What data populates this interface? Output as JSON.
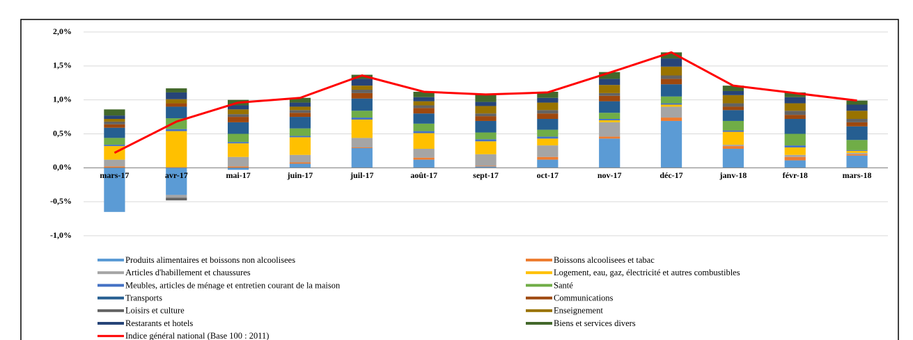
{
  "chart_data": {
    "type": "bar",
    "stacked": true,
    "grid": true,
    "legend": "bottom",
    "categories": [
      "mars-17",
      "avr-17",
      "mai-17",
      "juin-17",
      "juil-17",
      "août-17",
      "sept-17",
      "oct-17",
      "nov-17",
      "déc-17",
      "janv-18",
      "févr-18",
      "mars-18"
    ],
    "ylim": [
      -1.0,
      2.0
    ],
    "yticks": [
      {
        "value": -1.0,
        "label": "-1,0%"
      },
      {
        "value": -0.5,
        "label": "-0,5%"
      },
      {
        "value": 0,
        "label": "0,0%"
      },
      {
        "value": 0.5,
        "label": "0,5%"
      },
      {
        "value": 1.0,
        "label": "1,0%"
      },
      {
        "value": 1.5,
        "label": "1,5%"
      },
      {
        "value": 2.0,
        "label": "2,0%"
      }
    ],
    "series": [
      {
        "name": "Produits alimentaires et boissons non alcoolisees",
        "color": "#5b9bd5",
        "values": [
          -0.65,
          -0.4,
          -0.03,
          0.06,
          0.29,
          0.12,
          0.02,
          0.12,
          0.43,
          0.69,
          0.28,
          0.11,
          0.18
        ]
      },
      {
        "name": "Boissons alcoolisees et tabac",
        "color": "#ed7d31",
        "values": [
          0.02,
          0.01,
          0.02,
          0.02,
          0.01,
          0.03,
          0.01,
          0.04,
          0.03,
          0.05,
          0.04,
          0.05,
          0.02
        ]
      },
      {
        "name": "Articles d'habillement et chaussures",
        "color": "#a5a5a5",
        "values": [
          0.1,
          -0.04,
          0.14,
          0.11,
          0.14,
          0.13,
          0.17,
          0.17,
          0.21,
          0.16,
          0.02,
          0.03,
          0.02
        ]
      },
      {
        "name": "Logement, eau, gaz, électricité et autres combustibles",
        "color": "#ffc000",
        "values": [
          0.2,
          0.53,
          0.2,
          0.26,
          0.27,
          0.23,
          0.19,
          0.1,
          0.03,
          0.03,
          0.19,
          0.11,
          0.03
        ]
      },
      {
        "name": "Meubles, articles de ménage et entretien courant de la maison",
        "color": "#4472c4",
        "values": [
          0.02,
          0.03,
          0.02,
          0.02,
          0.03,
          0.03,
          0.03,
          0.03,
          0.02,
          0.02,
          0.02,
          0.03,
          0.01
        ]
      },
      {
        "name": "Santé",
        "color": "#70ad47",
        "values": [
          0.1,
          0.16,
          0.12,
          0.11,
          0.1,
          0.11,
          0.1,
          0.1,
          0.09,
          0.1,
          0.14,
          0.17,
          0.15
        ]
      },
      {
        "name": "Transports",
        "color": "#255e91",
        "values": [
          0.15,
          0.17,
          0.17,
          0.17,
          0.18,
          0.15,
          0.17,
          0.16,
          0.17,
          0.18,
          0.16,
          0.22,
          0.2
        ]
      },
      {
        "name": "Communications",
        "color": "#9e480e",
        "values": [
          0.05,
          0.05,
          0.08,
          0.06,
          0.08,
          0.08,
          0.07,
          0.08,
          0.08,
          0.08,
          0.05,
          0.06,
          0.06
        ]
      },
      {
        "name": "Loisirs et culture",
        "color": "#636363",
        "values": [
          0.04,
          -0.04,
          0.04,
          0.04,
          0.05,
          0.04,
          0.04,
          0.05,
          0.04,
          0.05,
          0.05,
          0.06,
          0.05
        ]
      },
      {
        "name": "Enseignement",
        "color": "#997300",
        "values": [
          0.04,
          0.06,
          0.07,
          0.05,
          0.06,
          0.06,
          0.11,
          0.11,
          0.12,
          0.13,
          0.12,
          0.11,
          0.12
        ]
      },
      {
        "name": "Restarants et hotels",
        "color": "#264478",
        "values": [
          0.05,
          0.1,
          0.06,
          0.06,
          0.1,
          0.06,
          0.06,
          0.07,
          0.09,
          0.12,
          0.06,
          0.09,
          0.09
        ]
      },
      {
        "name": "Biens et services divers",
        "color": "#43682b",
        "values": [
          0.09,
          0.06,
          0.08,
          0.07,
          0.06,
          0.08,
          0.11,
          0.09,
          0.1,
          0.09,
          0.08,
          0.07,
          0.06
        ]
      },
      {
        "name": "Indice général national (Base 100 : 2011)",
        "type": "line",
        "color": "#ff0000",
        "values": [
          0.22,
          0.68,
          0.96,
          1.03,
          1.36,
          1.12,
          1.08,
          1.11,
          1.4,
          1.7,
          1.21,
          1.1,
          0.99
        ]
      }
    ]
  }
}
